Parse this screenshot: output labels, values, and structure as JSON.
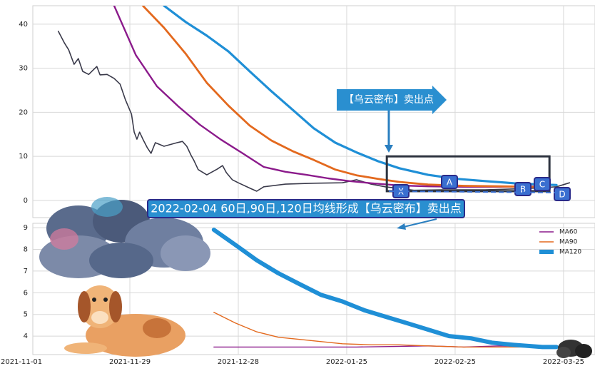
{
  "chart_data": [
    {
      "type": "line",
      "xlim": [
        2.1,
        105.8
      ],
      "ylim": [
        -3.9,
        44.2
      ],
      "yticks": [
        0,
        10,
        20,
        30,
        40
      ],
      "xticks": [
        {
          "value": 0,
          "label": "2021-11-01"
        },
        {
          "value": 20,
          "label": "2021-11-29"
        },
        {
          "value": 40,
          "label": "2021-12-28"
        },
        {
          "value": 60,
          "label": "2022-01-25"
        },
        {
          "value": 80,
          "label": "2022-02-25"
        },
        {
          "value": 100,
          "label": "2022-03-25"
        }
      ],
      "grid": true,
      "series": [
        {
          "color": "#3a3a4a",
          "width": 1.6,
          "x": [
            6.8,
            7.9,
            8.7,
            9.7,
            10.5,
            11.3,
            12.4,
            13.9,
            14.5,
            15.8,
            17.1,
            18.2,
            19.2,
            20.3,
            20.8,
            21.3,
            21.8,
            22.4,
            23.2,
            23.9,
            24.7,
            26.3,
            28.7,
            29.7,
            30.5,
            31.3,
            31.8,
            32.6,
            34.2,
            36.1,
            37.1,
            37.8,
            38.9,
            40.0,
            42.1,
            43.4,
            44.7,
            48.7,
            53.9,
            59.2,
            61.8,
            64.5,
            67.1,
            72.4,
            77.6,
            85.5,
            93.4,
            98.7,
            101.1
          ],
          "values": [
            38.4,
            35.8,
            34.2,
            30.9,
            32.2,
            29.3,
            28.6,
            30.4,
            28.5,
            28.6,
            27.7,
            26.4,
            22.8,
            19.6,
            15.5,
            13.9,
            15.5,
            13.9,
            12.0,
            10.7,
            13.1,
            12.3,
            13.1,
            13.4,
            12.3,
            10.2,
            9.1,
            7.0,
            5.8,
            7.1,
            7.9,
            6.3,
            4.7,
            4.0,
            2.8,
            2.1,
            3.1,
            3.7,
            3.9,
            4.0,
            4.7,
            3.7,
            3.1,
            2.3,
            2.4,
            2.4,
            2.7,
            3.1,
            4.0
          ]
        },
        {
          "color": "#8b1a8b",
          "width": 2.4,
          "x": [
            15.8,
            17.1,
            21.1,
            25.0,
            28.9,
            32.9,
            36.8,
            40.8,
            44.7,
            48.7,
            52.6,
            56.6,
            60.5,
            64.5,
            69.7,
            75.0,
            81.6,
            88.2,
            93.4,
            97.4
          ],
          "values": [
            47,
            44.2,
            33,
            25.9,
            21.4,
            17.2,
            13.8,
            10.7,
            7.6,
            6.5,
            5.8,
            5.0,
            4.4,
            3.9,
            3.4,
            3.2,
            3.1,
            3.1,
            3.2,
            3.1
          ]
        },
        {
          "color": "#e3691e",
          "width": 2.8,
          "x": [
            22.4,
            26.3,
            30.3,
            34.2,
            38.2,
            42.1,
            46.1,
            50.0,
            53.9,
            57.9,
            61.8,
            65.8,
            69.7,
            75.0,
            81.6,
            88.2,
            93.4,
            97.4
          ],
          "values": [
            44.2,
            39.2,
            33.3,
            26.7,
            21.5,
            17.0,
            13.6,
            11.2,
            9.2,
            7.0,
            5.7,
            4.9,
            4.2,
            3.6,
            3.3,
            3.2,
            3.1,
            3.0
          ]
        },
        {
          "color": "#1f8fd6",
          "width": 3.2,
          "x": [
            26.3,
            30.3,
            34.2,
            38.2,
            42.1,
            46.1,
            50.0,
            53.9,
            57.9,
            61.8,
            65.8,
            69.7,
            75.0,
            80.3,
            85.5,
            90.8,
            96.1,
            98.7
          ],
          "values": [
            44.2,
            40.5,
            37.4,
            33.8,
            29.3,
            24.8,
            20.6,
            16.4,
            13.1,
            10.9,
            8.9,
            7.3,
            5.8,
            4.9,
            4.4,
            3.9,
            3.6,
            3.5
          ]
        }
      ],
      "highlight_box": {
        "x": [
          67.4,
          97.4
        ],
        "y": [
          2.1,
          10
        ]
      }
    },
    {
      "type": "line",
      "xlim": [
        2.1,
        105.8
      ],
      "ylim": [
        3.15,
        9.2
      ],
      "yticks": [
        4,
        5,
        6,
        7,
        8,
        9
      ],
      "xticks": [
        {
          "value": 0,
          "label": "2021-11-01"
        },
        {
          "value": 20,
          "label": "2021-11-29"
        },
        {
          "value": 40,
          "label": "2021-12-28"
        },
        {
          "value": 60,
          "label": "2022-01-25"
        },
        {
          "value": 80,
          "label": "2022-02-25"
        },
        {
          "value": 100,
          "label": "2022-03-25"
        }
      ],
      "grid": true,
      "legend": "upper right",
      "series": [
        {
          "name": "MA60",
          "color": "#8b1a8b",
          "width": 1.4,
          "x": [
            35.5,
            48.7,
            61.8,
            75.0,
            81.6,
            88.2,
            96.1
          ],
          "values": [
            3.5,
            3.5,
            3.5,
            3.55,
            3.5,
            3.55,
            3.5
          ]
        },
        {
          "name": "MA90",
          "color": "#e3691e",
          "width": 1.4,
          "x": [
            35.5,
            39.5,
            43.4,
            47.4,
            51.3,
            55.3,
            59.2,
            64.5,
            69.7,
            75.0,
            81.6,
            88.2,
            93.4
          ],
          "values": [
            5.1,
            4.6,
            4.2,
            3.95,
            3.85,
            3.75,
            3.65,
            3.6,
            3.6,
            3.55,
            3.5,
            3.5,
            3.5
          ]
        },
        {
          "name": "MA120",
          "color": "#1f8fd6",
          "width": 6,
          "x": [
            35.5,
            39.5,
            43.4,
            47.4,
            51.3,
            55.3,
            59.2,
            63.2,
            67.1,
            71.1,
            75.0,
            78.9,
            82.9,
            86.8,
            90.8,
            96.1,
            98.7
          ],
          "values": [
            8.9,
            8.2,
            7.5,
            6.9,
            6.4,
            5.9,
            5.6,
            5.2,
            4.9,
            4.6,
            4.3,
            4.0,
            3.9,
            3.7,
            3.6,
            3.5,
            3.5
          ]
        }
      ]
    }
  ],
  "annotations": [
    "【乌云密布】卖出点",
    "2022-02-04 60日,90日,120日均线形成【乌云密布】卖出点"
  ],
  "point_labels": [
    "X",
    "A",
    "B",
    "C",
    "D"
  ]
}
